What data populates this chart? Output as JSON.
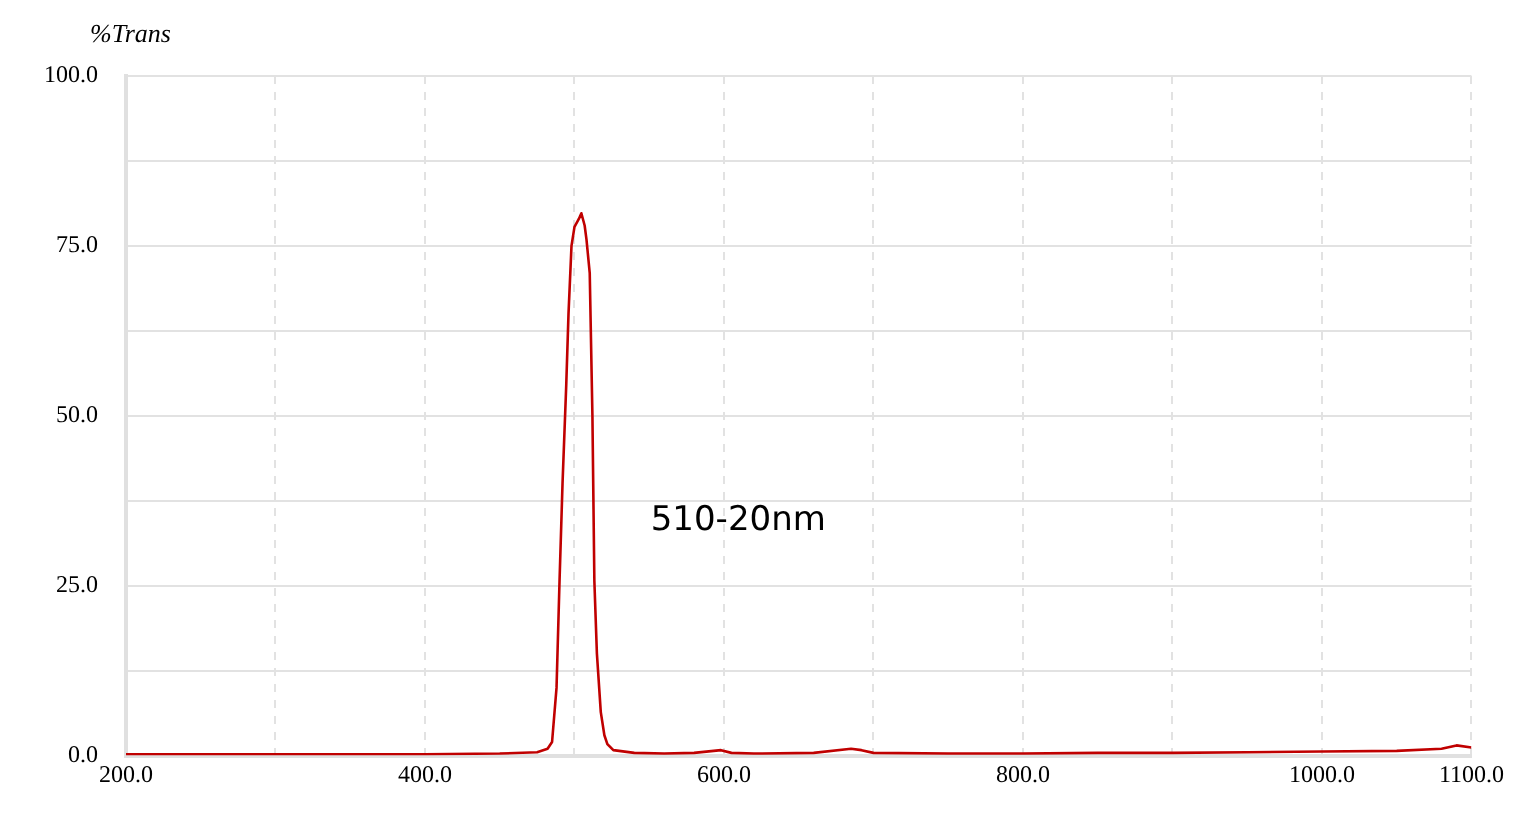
{
  "chart_data": {
    "type": "line",
    "ylabel": "%Trans",
    "annotations": [
      "510-20nm"
    ],
    "xlim": [
      200,
      1100
    ],
    "xticks": [
      {
        "value": 200,
        "label": "200.0"
      },
      {
        "value": 300,
        "label": null
      },
      {
        "value": 400,
        "label": "400.0"
      },
      {
        "value": 500,
        "label": null
      },
      {
        "value": 600,
        "label": "600.0"
      },
      {
        "value": 700,
        "label": null
      },
      {
        "value": 800,
        "label": "800.0"
      },
      {
        "value": 900,
        "label": null
      },
      {
        "value": 1000,
        "label": "1000.0"
      },
      {
        "value": 1100,
        "label": "1100.0"
      }
    ],
    "ylim": [
      0,
      100
    ],
    "yticks": [
      {
        "value": 0,
        "label": "0.0"
      },
      {
        "value": 12.5,
        "label": null
      },
      {
        "value": 25,
        "label": "25.0"
      },
      {
        "value": 37.5,
        "label": null
      },
      {
        "value": 50,
        "label": "50.0"
      },
      {
        "value": 62.5,
        "label": null
      },
      {
        "value": 75,
        "label": "75.0"
      },
      {
        "value": 87.5,
        "label": null
      },
      {
        "value": 100,
        "label": "100.0"
      }
    ],
    "grid": true,
    "legend": false,
    "marker": "none",
    "line_style": "solid",
    "series": [
      {
        "color": "#c00000",
        "x": [
          200,
          300,
          400,
          450,
          475,
          482,
          485,
          488,
          490,
          492,
          494.5,
          496,
          498,
          500,
          503,
          504.6,
          506.8,
          508,
          510.2,
          512,
          513.3,
          515,
          517.6,
          520,
          522,
          526,
          540,
          560,
          580,
          598,
          605,
          620,
          660,
          685,
          692,
          700,
          750,
          800,
          850,
          900,
          950,
          1000,
          1050,
          1080,
          1090,
          1100
        ],
        "values": [
          0.2,
          0.2,
          0.2,
          0.3,
          0.5,
          1,
          2,
          10,
          25.7,
          40,
          54.6,
          65,
          75,
          77.8,
          79,
          79.8,
          78,
          76,
          71,
          50,
          25.7,
          15,
          6.4,
          3,
          1.7,
          0.8,
          0.4,
          0.3,
          0.4,
          0.8,
          0.4,
          0.3,
          0.4,
          1,
          0.8,
          0.4,
          0.3,
          0.3,
          0.4,
          0.4,
          0.5,
          0.6,
          0.7,
          1,
          1.5,
          1.2
        ]
      }
    ]
  }
}
